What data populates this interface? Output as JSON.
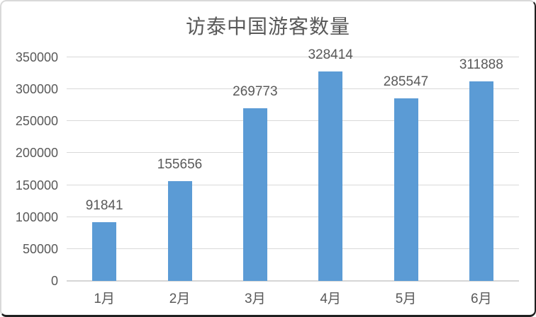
{
  "chart_data": {
    "type": "bar",
    "title": "访泰中国游客数量",
    "categories": [
      "1月",
      "2月",
      "3月",
      "4月",
      "5月",
      "6月"
    ],
    "values": [
      91841,
      155656,
      269773,
      328414,
      285547,
      311888
    ],
    "data_labels": [
      "91841",
      "155656",
      "269773",
      "328414",
      "285547",
      "311888"
    ],
    "ylim": [
      0,
      350000
    ],
    "ytick_interval": 50000,
    "ytick_labels": [
      "0",
      "50000",
      "100000",
      "150000",
      "200000",
      "250000",
      "300000",
      "350000"
    ],
    "xlabel": "",
    "ylabel": "",
    "grid": true,
    "legend": "none",
    "colors": {
      "bar": "#5b9bd5",
      "gridline": "#d9d9d9",
      "axis_line": "#d6d6d6",
      "label_text": "#595959",
      "title_text": "#595959",
      "background": "#ffffff",
      "frame_border_light": "#d9d9d9",
      "frame_border_dark": "#1f1f1f"
    }
  }
}
